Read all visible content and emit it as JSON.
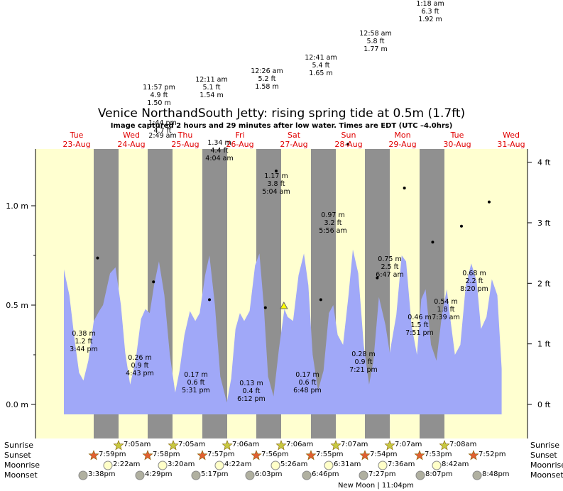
{
  "title": "Venice NorthandSouth Jetty: rising  spring tide at 0.5m (1.7ft)",
  "subtitle": "Image captured 2 hours and 29 minutes after low water. Times are EDT (UTC –4.0hrs)",
  "days": [
    {
      "dow": "Tue",
      "date": "23-Aug"
    },
    {
      "dow": "Wed",
      "date": "24-Aug"
    },
    {
      "dow": "Thu",
      "date": "25-Aug"
    },
    {
      "dow": "Fri",
      "date": "26-Aug"
    },
    {
      "dow": "Sat",
      "date": "27-Aug"
    },
    {
      "dow": "Sun",
      "date": "28-Aug"
    },
    {
      "dow": "Mon",
      "date": "29-Aug"
    },
    {
      "dow": "Tue",
      "date": "30-Aug"
    },
    {
      "dow": "Wed",
      "date": "31-Aug"
    }
  ],
  "chart_data": {
    "type": "area",
    "y_left_unit": "m",
    "y_right_unit": "ft",
    "y_left_ticks": [
      "0.0 m",
      "0.5 m",
      "1.0 m"
    ],
    "y_right_ticks": [
      "0 ft",
      "1 ft",
      "2 ft",
      "3 ft",
      "4 ft"
    ],
    "ylim_m": [
      -0.18,
      1.28
    ],
    "xlim_days": [
      0,
      8
    ],
    "current_level": {
      "day": 4.05,
      "m": 0.5
    },
    "colors": {
      "water": "#a0a8f8",
      "day": "#ffffd0",
      "night": "#909090",
      "marker": "#ffff00"
    },
    "series": [
      {
        "name": "tide",
        "x": [
          0,
          0.1,
          0.2,
          0.28,
          0.36,
          0.45,
          0.55,
          0.65,
          0.72,
          0.85,
          0.95,
          1.05,
          1.13,
          1.22,
          1.32,
          1.42,
          1.5,
          1.58,
          1.66,
          1.75,
          1.85,
          1.95,
          2.05,
          2.13,
          2.22,
          2.32,
          2.42,
          2.5,
          2.6,
          2.68,
          2.78,
          2.88,
          3.0,
          3.08,
          3.16,
          3.24,
          3.32,
          3.42,
          3.52,
          3.6,
          3.68,
          3.76,
          3.86,
          3.96,
          4.06,
          4.12,
          4.22,
          4.32,
          4.42,
          4.5,
          4.58,
          4.68,
          4.78,
          4.88,
          4.96,
          5.04,
          5.14,
          5.24,
          5.32,
          5.42,
          5.52,
          5.62,
          5.7,
          5.8,
          5.92,
          6.0,
          6.12,
          6.22,
          6.3,
          6.4,
          6.5,
          6.58,
          6.66,
          6.76,
          6.86,
          6.96,
          7.05,
          7.12,
          7.2,
          7.3,
          7.4,
          7.5,
          7.6,
          7.68,
          7.78,
          7.88,
          7.98,
          8.06
        ],
        "values": [
          0.68,
          0.55,
          0.32,
          0.16,
          0.12,
          0.22,
          0.42,
          0.47,
          0.5,
          0.66,
          0.69,
          0.5,
          0.26,
          0.1,
          0.22,
          0.43,
          0.48,
          0.46,
          0.6,
          0.72,
          0.55,
          0.25,
          0.06,
          0.17,
          0.35,
          0.47,
          0.42,
          0.46,
          0.65,
          0.75,
          0.5,
          0.14,
          0.01,
          0.13,
          0.38,
          0.46,
          0.42,
          0.47,
          0.7,
          0.76,
          0.5,
          0.14,
          0.04,
          0.28,
          0.48,
          0.44,
          0.42,
          0.65,
          0.76,
          0.6,
          0.25,
          0.07,
          0.17,
          0.46,
          0.5,
          0.35,
          0.3,
          0.55,
          0.78,
          0.66,
          0.3,
          0.1,
          0.22,
          0.54,
          0.4,
          0.26,
          0.45,
          0.75,
          0.72,
          0.4,
          0.25,
          0.53,
          0.58,
          0.3,
          0.22,
          0.45,
          0.58,
          0.42,
          0.25,
          0.3,
          0.6,
          0.71,
          0.62,
          0.38,
          0.44,
          0.63,
          0.55,
          0.18
        ]
      }
    ]
  },
  "high_tides": [
    {
      "time": "1:44 pm",
      "ft": "4.7 ft",
      "m": "",
      "day": 1.57
    },
    {
      "time": "11:57 pm",
      "ft": "4.9 ft",
      "m": "1.50 m",
      "day": 2.0
    },
    {
      "time": "12:11 am",
      "ft": "5.1 ft",
      "m": "1.54 m",
      "day": 3.0
    },
    {
      "time": "12:26 am",
      "ft": "5.2 ft",
      "m": "1.58 m",
      "day": 4.0
    },
    {
      "time": "12:41 am",
      "ft": "5.4 ft",
      "m": "1.65 m",
      "day": 5.0
    },
    {
      "time": "12:58 am",
      "ft": "5.8 ft",
      "m": "1.77 m",
      "day": 6.0
    },
    {
      "time": "1:18 am",
      "ft": "6.3 ft",
      "m": "1.92 m",
      "day": 7.0
    }
  ],
  "low_tides_top": [
    {
      "time": "2:49 am",
      "ft": "",
      "m": "",
      "day": 2.1
    },
    {
      "m": "1.34 m",
      "ft": "4.4 ft",
      "time": "4:04 am",
      "day": 3.17
    },
    {
      "m": "1.17 m",
      "ft": "3.8 ft",
      "time": "5:04 am",
      "day": 4.21
    }
  ],
  "tide_labels": [
    {
      "m": "0.38 m",
      "ft": "1.2 ft",
      "time": "3:44 pm",
      "day": 0.62,
      "val": 0.38
    },
    {
      "m": "0.26 m",
      "ft": "0.9 ft",
      "time": "4:43 pm",
      "day": 1.65,
      "val": 0.26
    },
    {
      "m": "0.17 m",
      "ft": "0.6 ft",
      "time": "5:31 pm",
      "day": 2.68,
      "val": 0.17
    },
    {
      "m": "0.13 m",
      "ft": "0.4 ft",
      "time": "6:12 pm",
      "day": 3.71,
      "val": 0.13
    },
    {
      "m": "0.17 m",
      "ft": "0.6 ft",
      "time": "6:48 pm",
      "day": 4.73,
      "val": 0.17
    },
    {
      "m": "0.97 m",
      "ft": "3.2 ft",
      "time": "5:56 am",
      "day": 5.23,
      "val": 0.97
    },
    {
      "m": "0.28 m",
      "ft": "0.9 ft",
      "time": "7:21 pm",
      "day": 5.77,
      "val": 0.28
    },
    {
      "m": "0.75 m",
      "ft": "2.5 ft",
      "time": "6:47 am",
      "day": 6.27,
      "val": 0.75
    },
    {
      "m": "0.46 m",
      "ft": "1.5 ft",
      "time": "7:51 pm",
      "day": 6.79,
      "val": 0.46
    },
    {
      "m": "0.54 m",
      "ft": "1.8 ft",
      "time": "7:39 am",
      "day": 7.32,
      "val": 0.54
    },
    {
      "m": "0.68 m",
      "ft": "2.2 ft",
      "time": "8:20 pm",
      "day": 7.83,
      "val": 0.68
    }
  ],
  "rows": {
    "sunrise": "Sunrise",
    "sunset": "Sunset",
    "moonrise": "Moonrise",
    "moonset": "Moonset"
  },
  "sunrise": [
    "7:05am",
    "7:05am",
    "7:06am",
    "7:06am",
    "7:07am",
    "7:07am",
    "7:08am"
  ],
  "sunset": [
    "7:59pm",
    "7:58pm",
    "7:57pm",
    "7:56pm",
    "7:55pm",
    "7:54pm",
    "7:53pm",
    "7:52pm"
  ],
  "moonrise": [
    "2:22am",
    "3:20am",
    "4:22am",
    "5:26am",
    "6:31am",
    "7:36am",
    "8:42am"
  ],
  "moonset": [
    "3:38pm",
    "4:29pm",
    "5:17pm",
    "6:03pm",
    "6:46pm",
    "7:27pm",
    "8:07pm",
    "8:48pm"
  ],
  "new_moon": "New Moon | 11:04pm"
}
